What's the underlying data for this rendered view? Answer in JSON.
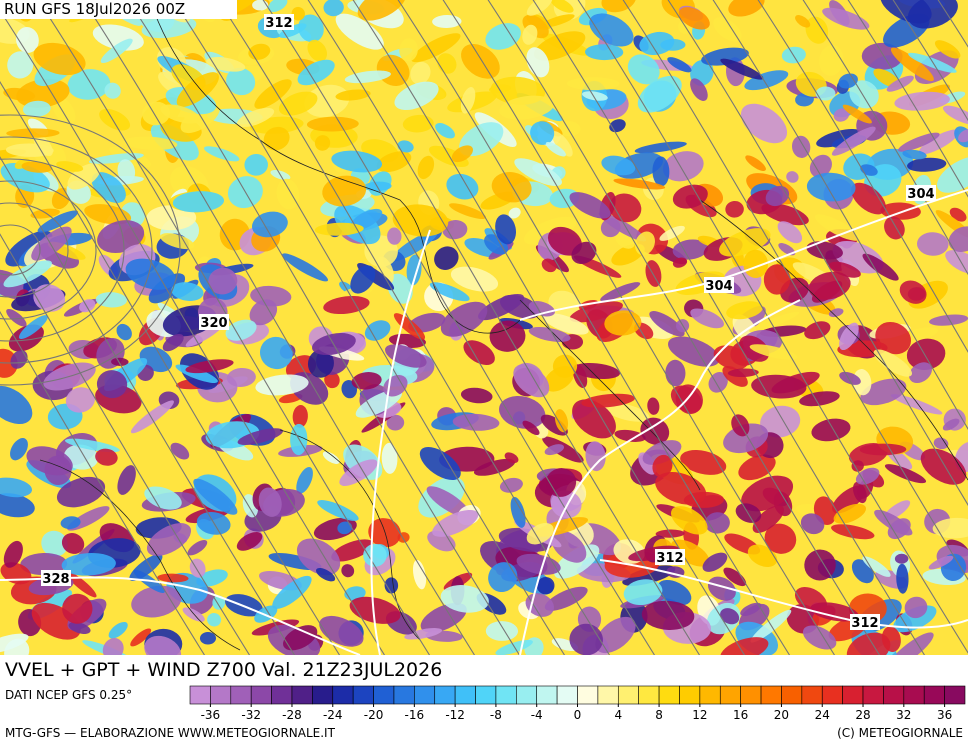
{
  "header": {
    "run": "RUN GFS 18Jul2026 00Z"
  },
  "title": "VVEL + GPT + WIND Z700 Val. 21Z23JUL2026",
  "source": "DATI NCEP GFS 0.25°",
  "footer": {
    "left": "MTG-GFS — ELABORAZIONE WWW.METEOGIORNALE.IT",
    "right": "(C) METEOGIORNALE"
  },
  "contour_labels": [
    "312",
    "304",
    "304",
    "320",
    "312",
    "328",
    "312"
  ],
  "colorbar": {
    "range": [
      -38,
      38
    ],
    "ticks": [
      -36,
      -32,
      -28,
      -24,
      -20,
      -16,
      -12,
      -8,
      -4,
      0,
      4,
      8,
      12,
      16,
      20,
      24,
      28,
      32,
      36
    ],
    "colors": [
      "#c890d8",
      "#b478c8",
      "#a060b8",
      "#8c48a8",
      "#703098",
      "#502088",
      "#281c8c",
      "#1c2ca8",
      "#1c44c0",
      "#2060d4",
      "#2878e0",
      "#3090ec",
      "#38a8f4",
      "#40c0f8",
      "#50d4f8",
      "#70e4f4",
      "#98eef0",
      "#c0f6f0",
      "#e4fcf4",
      "#fffde0",
      "#fff7a8",
      "#fff070",
      "#ffe840",
      "#ffdc10",
      "#ffcc00",
      "#ffb800",
      "#ffa400",
      "#ff9000",
      "#ff7800",
      "#f86000",
      "#f04810",
      "#e83020",
      "#d82030",
      "#c81840",
      "#b81048",
      "#a80c50",
      "#980858",
      "#880a60"
    ]
  }
}
